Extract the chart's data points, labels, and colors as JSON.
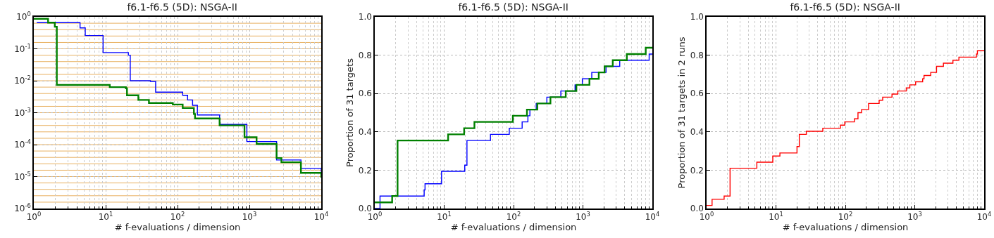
{
  "chart_data": [
    {
      "type": "step",
      "title": "f6.1-f6.5 (5D): NSGA-II",
      "xlabel": "# f-evaluations / dimension",
      "log": "xy",
      "grid": true,
      "xlim": [
        1,
        10000
      ],
      "xticks": [
        {
          "value": 1,
          "label": "10$^{0}$"
        },
        {
          "value": 10,
          "label": "10$^{1}$"
        },
        {
          "value": 100,
          "label": "10$^{2}$"
        },
        {
          "value": 1000,
          "label": "10$^{3}$"
        },
        {
          "value": 10000,
          "label": "10$^{4}$"
        }
      ],
      "ylim": [
        1e-06,
        1
      ],
      "yticks": [
        {
          "value": 1,
          "label": "10$^{0}$"
        },
        {
          "value": 0.1,
          "label": "10$^{-1}$"
        },
        {
          "value": 0.01,
          "label": "10$^{-2}$"
        },
        {
          "value": 0.001,
          "label": "10$^{-3}$"
        },
        {
          "value": 0.0001,
          "label": "10$^{-4}$"
        },
        {
          "value": 1e-05,
          "label": "10$^{-5}$"
        },
        {
          "value": 1e-06,
          "label": "10$^{-6}$"
        }
      ],
      "series": [
        {
          "color": "#0000ff",
          "x": [
            1.1,
            4.1,
            4.4,
            5.2,
            9.2,
            20.7,
            22,
            42,
            49.6,
            118,
            138,
            162,
            189,
            385,
            923,
            2390,
            5220,
            10000
          ],
          "values": [
            0.66,
            0.66,
            0.45,
            0.26,
            0.076,
            0.063,
            0.01,
            0.0095,
            0.0044,
            0.0035,
            0.0025,
            0.0017,
            0.00085,
            0.00043,
            0.000125,
            3.3e-05,
            1.8e-05,
            1.4e-05
          ]
        },
        {
          "color": "#008000",
          "x": [
            1,
            1.58,
            1.96,
            2.09,
            11.4,
            19.1,
            19.8,
            28.5,
            40,
            86,
            118,
            169,
            175,
            385,
            855,
            1260,
            2390,
            2790,
            5220,
            10000
          ],
          "values": [
            0.87,
            0.66,
            0.49,
            0.0074,
            0.0063,
            0.0058,
            0.0035,
            0.0025,
            0.002,
            0.0018,
            0.0014,
            0.00091,
            0.00066,
            0.0004,
            0.00017,
            0.000105,
            3.8e-05,
            2.8e-05,
            1.3e-05,
            9.3e-06
          ]
        }
      ],
      "ref_lines": [
        {
          "axis": "y",
          "value": 0.631,
          "color": "#e8b060"
        },
        {
          "axis": "y",
          "value": 0.398,
          "color": "#e8b060"
        },
        {
          "axis": "y",
          "value": 0.251,
          "color": "#e8b060"
        },
        {
          "axis": "y",
          "value": 0.158,
          "color": "#e8b060"
        },
        {
          "axis": "y",
          "value": 0.1,
          "color": "#e8b060"
        },
        {
          "axis": "y",
          "value": 0.0631,
          "color": "#e8b060"
        },
        {
          "axis": "y",
          "value": 0.0398,
          "color": "#e8b060"
        },
        {
          "axis": "y",
          "value": 0.0251,
          "color": "#e8b060"
        },
        {
          "axis": "y",
          "value": 0.0158,
          "color": "#e8b060"
        },
        {
          "axis": "y",
          "value": 0.01,
          "color": "#e8b060"
        },
        {
          "axis": "y",
          "value": 0.00631,
          "color": "#e8b060"
        },
        {
          "axis": "y",
          "value": 0.00398,
          "color": "#e8b060"
        },
        {
          "axis": "y",
          "value": 0.00251,
          "color": "#e8b060"
        },
        {
          "axis": "y",
          "value": 0.00158,
          "color": "#e8b060"
        },
        {
          "axis": "y",
          "value": 0.001,
          "color": "#e8b060"
        },
        {
          "axis": "y",
          "value": 0.000631,
          "color": "#e8b060"
        },
        {
          "axis": "y",
          "value": 0.000398,
          "color": "#e8b060"
        },
        {
          "axis": "y",
          "value": 0.000251,
          "color": "#e8b060"
        },
        {
          "axis": "y",
          "value": 0.000158,
          "color": "#e8b060"
        },
        {
          "axis": "y",
          "value": 0.0001,
          "color": "#e8b060"
        },
        {
          "axis": "y",
          "value": 6.31e-05,
          "color": "#e8b060"
        },
        {
          "axis": "y",
          "value": 3.98e-05,
          "color": "#e8b060"
        },
        {
          "axis": "y",
          "value": 2.51e-05,
          "color": "#e8b060"
        },
        {
          "axis": "y",
          "value": 1.58e-05,
          "color": "#e8b060"
        },
        {
          "axis": "y",
          "value": 1e-05,
          "color": "#e8b060"
        },
        {
          "axis": "y",
          "value": 6.31e-06,
          "color": "#e8b060"
        },
        {
          "axis": "y",
          "value": 3.98e-06,
          "color": "#e8b060"
        },
        {
          "axis": "y",
          "value": 2.51e-06,
          "color": "#e8b060"
        },
        {
          "axis": "y",
          "value": 1.58e-06,
          "color": "#e8b060"
        }
      ]
    },
    {
      "type": "step",
      "title": "f6.1-f6.5 (5D): NSGA-II",
      "xlabel": "# f-evaluations / dimension",
      "ylabel": "Proportion of 31 targets",
      "log": "x",
      "grid": true,
      "xlim": [
        1,
        10000
      ],
      "xticks": [
        {
          "value": 1,
          "label": "10$^{0}$"
        },
        {
          "value": 10,
          "label": "10$^{1}$"
        },
        {
          "value": 100,
          "label": "10$^{2}$"
        },
        {
          "value": 1000,
          "label": "10$^{3}$"
        },
        {
          "value": 10000,
          "label": "10$^{4}$"
        }
      ],
      "ylim": [
        0,
        1
      ],
      "yticks": [
        {
          "value": 0,
          "label": "0.0"
        },
        {
          "value": 0.2,
          "label": "0.2"
        },
        {
          "value": 0.4,
          "label": "0.4"
        },
        {
          "value": 0.6,
          "label": "0.6"
        },
        {
          "value": 0.8,
          "label": "0.8"
        },
        {
          "value": 1,
          "label": "1.0"
        }
      ],
      "series": [
        {
          "color": "#0000ff",
          "x": [
            1,
            1.19,
            5.15,
            5.3,
            9.17,
            19.8,
            21.3,
            46.5,
            86.8,
            133,
            161,
            172,
            212,
            302,
            480,
            770,
            980,
            1340,
            2150,
            3390,
            9000,
            10000
          ],
          "values": [
            0,
            0.065,
            0.097,
            0.129,
            0.194,
            0.226,
            0.355,
            0.387,
            0.419,
            0.452,
            0.484,
            0.516,
            0.548,
            0.581,
            0.613,
            0.645,
            0.677,
            0.71,
            0.742,
            0.774,
            0.806,
            0.806
          ]
        },
        {
          "color": "#008000",
          "x": [
            1,
            1.78,
            2.13,
            11.4,
            19.4,
            27.3,
            97.7,
            156,
            220,
            340,
            565,
            804,
            1240,
            1690,
            2050,
            2690,
            4290,
            8030,
            10000
          ],
          "values": [
            0.032,
            0.065,
            0.355,
            0.387,
            0.419,
            0.452,
            0.484,
            0.516,
            0.548,
            0.581,
            0.613,
            0.645,
            0.677,
            0.71,
            0.742,
            0.774,
            0.806,
            0.839,
            0.839
          ]
        }
      ]
    },
    {
      "type": "step",
      "title": "f6.1-f6.5 (5D): NSGA-II",
      "xlabel": "# f-evaluations / dimension",
      "ylabel": "Proportion of 31 targets in 2 runs",
      "log": "x",
      "grid": true,
      "xlim": [
        1,
        10000
      ],
      "xticks": [
        {
          "value": 1,
          "label": "10$^{0}$"
        },
        {
          "value": 10,
          "label": "10$^{1}$"
        },
        {
          "value": 100,
          "label": "10$^{2}$"
        },
        {
          "value": 1000,
          "label": "10$^{3}$"
        },
        {
          "value": 10000,
          "label": "10$^{4}$"
        }
      ],
      "ylim": [
        0,
        1
      ],
      "yticks": [
        {
          "value": 0,
          "label": "0.0"
        },
        {
          "value": 0.2,
          "label": "0.2"
        },
        {
          "value": 0.4,
          "label": "0.4"
        },
        {
          "value": 0.6,
          "label": "0.6"
        },
        {
          "value": 0.8,
          "label": "0.8"
        },
        {
          "value": 1,
          "label": "1.0"
        }
      ],
      "series": [
        {
          "color": "#ff0000",
          "x": [
            1,
            1.2,
            1.79,
            2.18,
            5.3,
            9,
            11.4,
            20.1,
            21.7,
            27.4,
            47.3,
            85,
            98,
            135,
            152,
            171,
            216,
            307,
            345,
            470,
            570,
            755,
            850,
            1030,
            1300,
            1360,
            1700,
            2060,
            2590,
            3550,
            4330,
            7750,
            8000,
            10000
          ],
          "values": [
            0.016,
            0.048,
            0.065,
            0.21,
            0.242,
            0.274,
            0.29,
            0.323,
            0.387,
            0.403,
            0.419,
            0.435,
            0.452,
            0.468,
            0.5,
            0.516,
            0.548,
            0.565,
            0.581,
            0.597,
            0.613,
            0.629,
            0.645,
            0.661,
            0.677,
            0.694,
            0.71,
            0.742,
            0.758,
            0.774,
            0.79,
            0.806,
            0.823,
            0.823
          ]
        }
      ]
    }
  ]
}
